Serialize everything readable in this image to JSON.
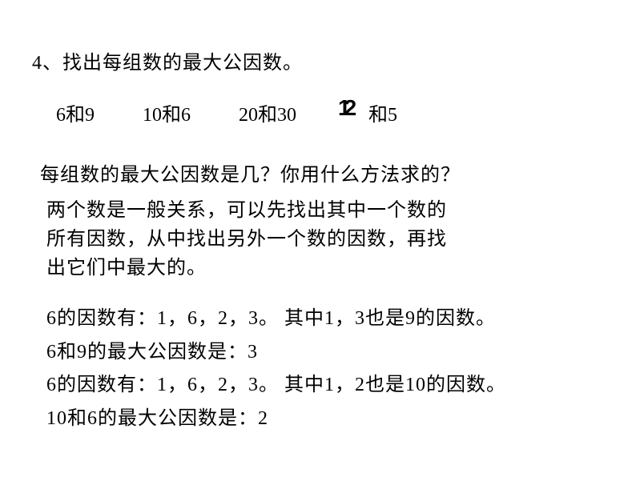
{
  "title": "4、找出每组数的最大公因数。",
  "problems": {
    "p1": "6和9",
    "p2": "10和6",
    "p3": "20和30",
    "p4_overlay": "12",
    "p4_text": "和5"
  },
  "question": "每组数的最大公因数是几？你用什么方法求的？",
  "explanation": {
    "line1": "两个数是一般关系，可以先找出其中一个数的",
    "line2": "所有因数，从中找出另外一个数的因数，再找",
    "line3": "出它们中最大的。"
  },
  "work": {
    "line1": "6的因数有：1，6，2，3。 其中1，3也是9的因数。",
    "line2": "6和9的最大公因数是：3",
    "line3": "6的因数有：1，6，2，3。 其中1，2也是10的因数。",
    "line4": "10和6的最大公因数是：2"
  }
}
